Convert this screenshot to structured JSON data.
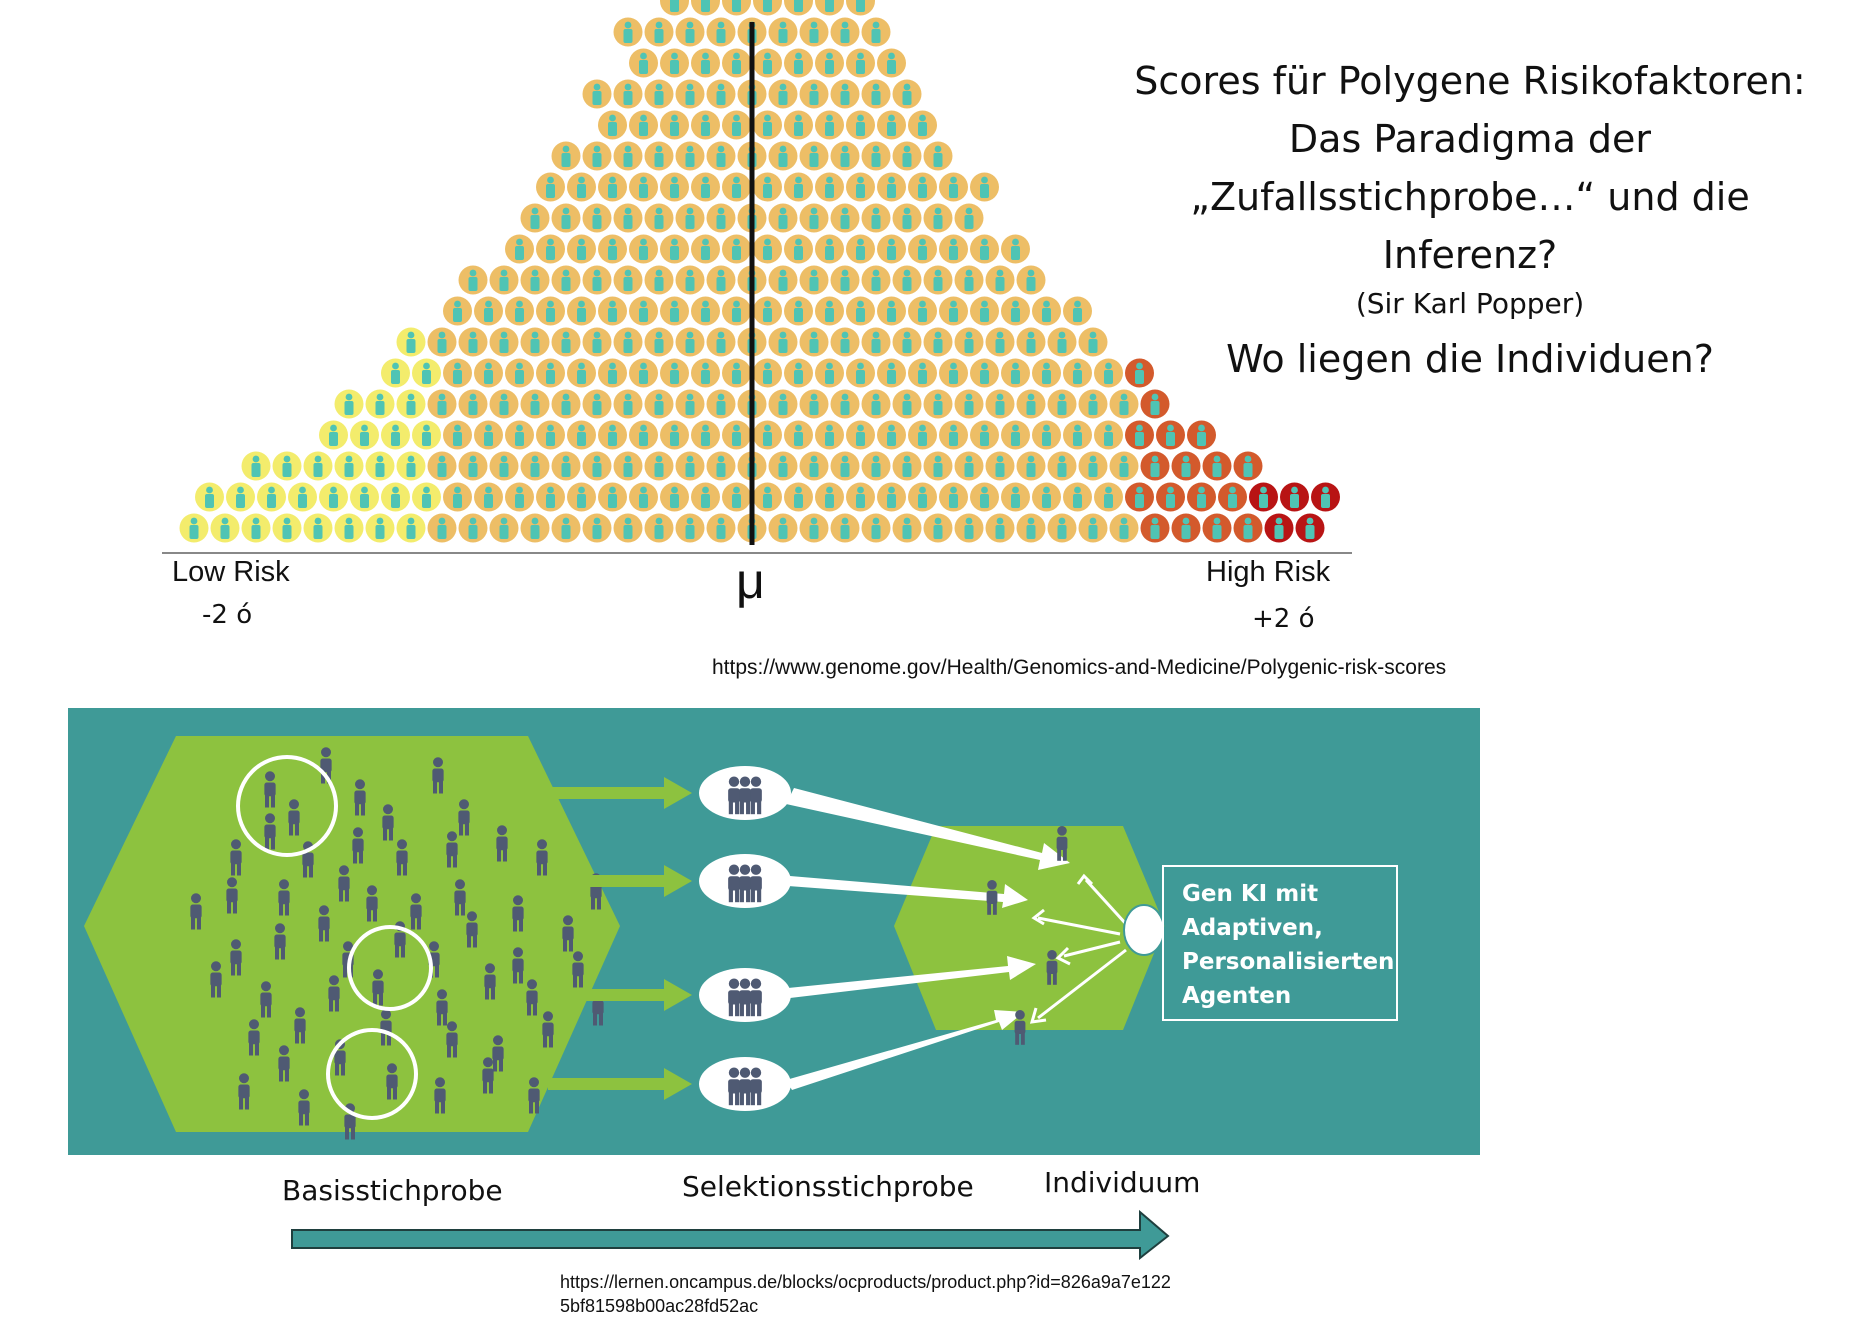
{
  "slide": {
    "title_lines": [
      "Scores für Polygene Risikofaktoren:",
      "Das Paradigma der",
      "„Zufallsstichprobe…“ und die",
      "Inferenz?"
    ],
    "attribution": "(Sir Karl Popper)",
    "question": "Wo liegen die Individuen?"
  },
  "distribution": {
    "low_label": "Low Risk",
    "low_sigma": "-2 ó",
    "mean_label": "μ",
    "high_label": "High Risk",
    "high_sigma": "+2 ó",
    "source_url": "https://www.genome.gov/Health/Genomics-and-Medicine/Polygenic-risk-scores",
    "colors": {
      "low": "#f3ec6c",
      "mid": "#edbe66",
      "elevated": "#d35a2c",
      "high": "#b81414",
      "person": "#4fc4b4"
    }
  },
  "sampling": {
    "agent_box_lines": [
      "Gen KI mit",
      "Adaptiven,",
      "Personalisierten",
      "Agenten"
    ],
    "flow_labels": {
      "base": "Basisstichprobe",
      "selection": "Selektionsstichprobe",
      "individual": "Individuum"
    },
    "source_url_lines": [
      "https://lernen.oncampus.de/blocks/ocproducts/product.php?id=826a9a7e122",
      "5bf81598b00ac28fd52ac"
    ],
    "colors": {
      "panel": "#3f9a97",
      "hexagon": "#8dc23f",
      "person": "#4f5a73",
      "arrow_green": "#8dc23f",
      "timeline": "#3f9a97"
    }
  }
}
